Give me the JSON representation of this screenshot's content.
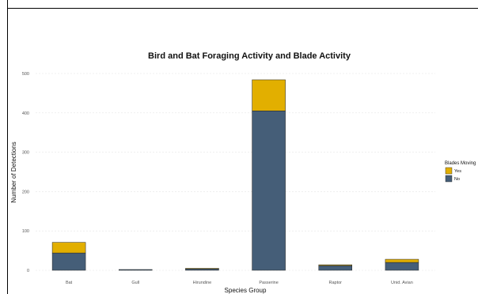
{
  "chart_data": {
    "type": "bar",
    "stacked": true,
    "title": "Bird and Bat Foraging Activity and Blade Activity",
    "xlabel": "Species Group",
    "ylabel": "Number of Detections",
    "categories": [
      "Bat",
      "Gull",
      "Hirundine",
      "Passerine",
      "Raptor",
      "Unid. Avian"
    ],
    "series": [
      {
        "name": "No",
        "color": "#455E78",
        "values": [
          44,
          2,
          4,
          405,
          12,
          20
        ]
      },
      {
        "name": "Yes",
        "color": "#E2AF00",
        "values": [
          27,
          0,
          1,
          79,
          2,
          8
        ]
      }
    ],
    "ylim": [
      0,
      500
    ],
    "yticks": [
      0,
      100,
      200,
      300,
      400,
      500
    ],
    "grid": true,
    "legend": {
      "title": "Blades Moving",
      "position": "right",
      "entries": [
        {
          "label": "Yes",
          "color": "#E2AF00"
        },
        {
          "label": "No",
          "color": "#455E78"
        }
      ]
    }
  }
}
